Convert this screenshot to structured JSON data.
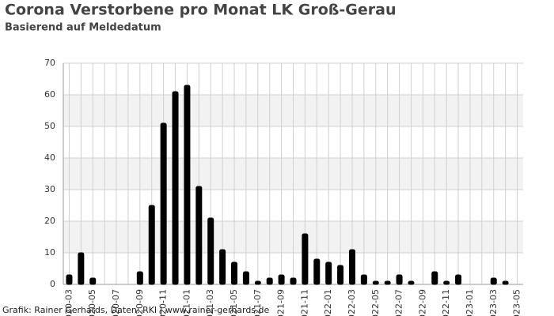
{
  "chart_data": {
    "type": "bar",
    "title": "Corona Verstorbene pro Monat LK Groß-Gerau",
    "subtitle": "Basierend auf Meldedatum",
    "footer": "Grafik: Rainer Gerhards, Daten: RKI | www.rainer-gerhards.de",
    "categories": [
      "2020-03",
      null,
      "2020-05",
      null,
      "2020-07",
      null,
      "2020-09",
      null,
      "2020-11",
      null,
      "2021-01",
      null,
      "2021-03",
      null,
      "2021-05",
      null,
      "2021-07",
      null,
      "2021-09",
      null,
      "2021-11",
      null,
      "2022-01",
      null,
      "2022-03",
      null,
      "2022-05",
      null,
      "2022-07",
      null,
      "2022-09",
      null,
      "2022-11",
      null,
      "2023-01",
      null,
      "2023-03",
      null,
      "2023-05"
    ],
    "values": [
      3,
      10,
      2,
      0,
      0,
      0,
      4,
      25,
      51,
      61,
      63,
      31,
      21,
      11,
      7,
      4,
      1,
      2,
      3,
      2,
      16,
      8,
      7,
      6,
      11,
      3,
      1,
      1,
      3,
      1,
      0,
      4,
      1,
      3,
      0,
      0,
      2,
      1,
      0
    ],
    "color": "#000000",
    "ylim": [
      0,
      70
    ],
    "yticks": [
      0,
      10,
      20,
      30,
      40,
      50,
      60,
      70
    ],
    "grid": true
  }
}
